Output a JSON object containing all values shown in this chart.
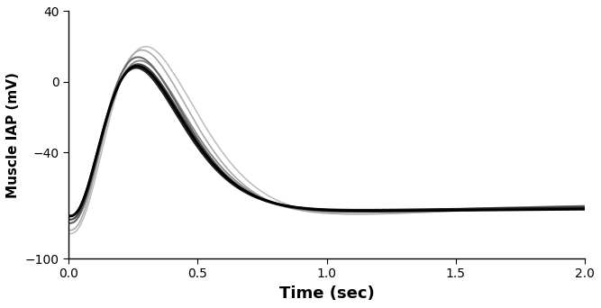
{
  "title": "",
  "xlabel": "Time (sec)",
  "ylabel": "Muscle IAP (mV)",
  "xlim": [
    0,
    2
  ],
  "ylim": [
    -100,
    40
  ],
  "xticks": [
    0,
    0.5,
    1,
    1.5,
    2
  ],
  "yticks": [
    -100,
    -40,
    0,
    40
  ],
  "background_color": "#ffffff",
  "curves": [
    {
      "color": "#bbbbbb",
      "linewidth": 1.1,
      "v_rest": -86,
      "v_peak": 20,
      "t_peak": 0.4,
      "rise_k": 25,
      "v_plateau": -64,
      "plateau_tau": 1.25
    },
    {
      "color": "#aaaaaa",
      "linewidth": 1.2,
      "v_rest": -84,
      "v_peak": 18,
      "t_peak": 0.38,
      "rise_k": 28,
      "v_plateau": -66,
      "plateau_tau": 1.2
    },
    {
      "color": "#888888",
      "linewidth": 1.3,
      "v_rest": -80,
      "v_peak": 12,
      "t_peak": 0.37,
      "rise_k": 30,
      "v_plateau": -68,
      "plateau_tau": 1.15
    },
    {
      "color": "#666666",
      "linewidth": 1.4,
      "v_rest": -80,
      "v_peak": 14,
      "t_peak": 0.36,
      "rise_k": 29,
      "v_plateau": -67,
      "plateau_tau": 1.18
    },
    {
      "color": "#444444",
      "linewidth": 1.5,
      "v_rest": -78,
      "v_peak": 10,
      "t_peak": 0.36,
      "rise_k": 32,
      "v_plateau": -69,
      "plateau_tau": 1.1
    },
    {
      "color": "#222222",
      "linewidth": 1.8,
      "v_rest": -76,
      "v_peak": 8,
      "t_peak": 0.35,
      "rise_k": 33,
      "v_plateau": -70,
      "plateau_tau": 1.05
    },
    {
      "color": "#000000",
      "linewidth": 2.0,
      "v_rest": -76,
      "v_peak": 9,
      "t_peak": 0.355,
      "rise_k": 31,
      "v_plateau": -71,
      "plateau_tau": 1.08
    }
  ]
}
